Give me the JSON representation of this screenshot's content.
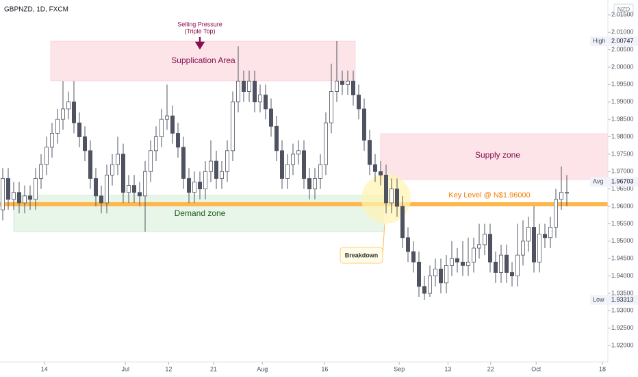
{
  "chart_data": {
    "type": "candlestick",
    "title": "GBPNZD, 1D, FXCM",
    "currency": "NZD",
    "up_color": "#ffffff",
    "down_color": "#4f5361",
    "edge_color": "#4f5361",
    "grid": false,
    "xlim": [
      -0.5,
      110.5
    ],
    "xticks": [
      {
        "value": 7.6,
        "label": "14"
      },
      {
        "value": 22.4,
        "label": "Jul"
      },
      {
        "value": 30.3,
        "label": "12"
      },
      {
        "value": 38.5,
        "label": "21"
      },
      {
        "value": 47.4,
        "label": "Aug"
      },
      {
        "value": 58.8,
        "label": "16"
      },
      {
        "value": 72.4,
        "label": "Sep"
      },
      {
        "value": 81.3,
        "label": "13"
      },
      {
        "value": 89.1,
        "label": "22"
      },
      {
        "value": 97.4,
        "label": "Oct"
      },
      {
        "value": 109.5,
        "label": "18"
      }
    ],
    "ylim": [
      1.9153,
      2.0193
    ],
    "yticks": [
      {
        "value": 1.92,
        "label": "1.92000"
      },
      {
        "value": 1.925,
        "label": "1.92500"
      },
      {
        "value": 1.93,
        "label": "1.93000"
      },
      {
        "value": 1.935,
        "label": "1.93500"
      },
      {
        "value": 1.94,
        "label": "1.94000"
      },
      {
        "value": 1.945,
        "label": "1.94500"
      },
      {
        "value": 1.95,
        "label": "1.95000"
      },
      {
        "value": 1.955,
        "label": "1.95500"
      },
      {
        "value": 1.96,
        "label": "1.96000"
      },
      {
        "value": 1.965,
        "label": "1.96500"
      },
      {
        "value": 1.97,
        "label": "1.97000"
      },
      {
        "value": 1.975,
        "label": "1.97500"
      },
      {
        "value": 1.98,
        "label": "1.98000"
      },
      {
        "value": 1.985,
        "label": "1.98500"
      },
      {
        "value": 1.99,
        "label": "1.99000"
      },
      {
        "value": 1.995,
        "label": "1.99500"
      },
      {
        "value": 2.0,
        "label": "2.00000"
      },
      {
        "value": 2.005,
        "label": "2.00500"
      },
      {
        "value": 2.01,
        "label": "2.01000"
      },
      {
        "value": 2.015,
        "label": "2.01500"
      }
    ],
    "markers": [
      {
        "label": "High",
        "value": 2.00747
      },
      {
        "label": "Avg",
        "value": 1.96703
      },
      {
        "label": "Low",
        "value": 1.93313
      }
    ],
    "annotations": [
      "Selling Pressure",
      "(Triple Top)",
      "Supplication Area",
      "Supply zone",
      "Demand zone",
      "Key Level @ N$1.96000",
      "Breakdown"
    ],
    "open": [
      1.959,
      1.968,
      1.962,
      1.964,
      1.961,
      1.963,
      1.962,
      1.968,
      1.972,
      1.977,
      1.981,
      1.985,
      1.988,
      1.99,
      1.984,
      1.98,
      1.976,
      1.968,
      1.963,
      1.961,
      1.969,
      1.972,
      1.975,
      1.964,
      1.966,
      1.964,
      1.963,
      1.97,
      1.976,
      1.98,
      1.985,
      1.986,
      1.981,
      1.977,
      1.968,
      1.964,
      1.967,
      1.965,
      1.97,
      1.973,
      1.968,
      1.97,
      1.976,
      1.99,
      1.996,
      1.993,
      1.996,
      1.99,
      1.992,
      1.988,
      1.983,
      1.976,
      1.968,
      1.972,
      1.975,
      1.976,
      1.968,
      1.965,
      1.968,
      1.972,
      1.984,
      1.993,
      1.996,
      1.995,
      1.996,
      1.992,
      1.988,
      1.979,
      1.972,
      1.97,
      1.969,
      1.961,
      1.965,
      1.96,
      1.951,
      1.947,
      1.944,
      1.937,
      1.935,
      1.94,
      1.942,
      1.938,
      1.943,
      1.945,
      1.944,
      1.943,
      1.944,
      1.948,
      1.949,
      1.952,
      1.944,
      1.941,
      1.946,
      1.941,
      1.94,
      1.946,
      1.95,
      1.954,
      1.944,
      1.952,
      1.951,
      1.954,
      1.962,
      1.964
    ],
    "high": [
      1.971,
      1.971,
      1.967,
      1.967,
      1.966,
      1.966,
      1.971,
      1.975,
      1.98,
      1.984,
      1.988,
      1.996,
      1.993,
      1.996,
      1.987,
      1.983,
      1.979,
      1.971,
      1.966,
      1.972,
      1.975,
      1.98,
      1.978,
      1.969,
      1.969,
      1.967,
      1.973,
      1.979,
      1.983,
      1.988,
      1.995,
      1.989,
      1.984,
      1.98,
      1.971,
      1.97,
      1.97,
      1.973,
      1.979,
      1.976,
      1.973,
      1.979,
      1.993,
      2.006,
      1.999,
      1.999,
      1.999,
      1.995,
      1.995,
      1.991,
      1.986,
      1.979,
      1.975,
      1.978,
      1.979,
      1.979,
      1.971,
      1.971,
      1.975,
      1.987,
      2.001,
      2.0075,
      1.999,
      1.999,
      1.999,
      1.995,
      1.991,
      1.982,
      1.975,
      1.973,
      1.972,
      1.968,
      1.968,
      1.963,
      1.954,
      1.95,
      1.947,
      1.94,
      1.943,
      1.945,
      1.945,
      1.946,
      1.95,
      1.948,
      1.95,
      1.951,
      1.951,
      1.955,
      1.955,
      1.955,
      1.947,
      1.949,
      1.949,
      1.944,
      1.955,
      1.956,
      1.957,
      1.96,
      1.955,
      1.955,
      1.957,
      1.965,
      1.9715,
      1.969
    ],
    "low": [
      1.956,
      1.959,
      1.959,
      1.958,
      1.958,
      1.959,
      1.959,
      1.965,
      1.969,
      1.974,
      1.978,
      1.982,
      1.985,
      1.981,
      1.977,
      1.973,
      1.965,
      1.96,
      1.958,
      1.958,
      1.966,
      1.969,
      1.961,
      1.961,
      1.961,
      1.96,
      1.9527,
      1.967,
      1.973,
      1.977,
      1.982,
      1.978,
      1.974,
      1.965,
      1.961,
      1.961,
      1.962,
      1.962,
      1.967,
      1.965,
      1.965,
      1.967,
      1.973,
      1.987,
      1.99,
      1.99,
      1.987,
      1.987,
      1.985,
      1.98,
      1.973,
      1.965,
      1.965,
      1.969,
      1.972,
      1.965,
      1.962,
      1.962,
      1.965,
      1.969,
      1.981,
      1.99,
      1.992,
      1.992,
      1.989,
      1.985,
      1.976,
      1.969,
      1.967,
      1.966,
      1.958,
      1.958,
      1.957,
      1.948,
      1.944,
      1.941,
      1.934,
      1.9331,
      1.934,
      1.937,
      1.935,
      1.935,
      1.94,
      1.941,
      1.94,
      1.94,
      1.941,
      1.945,
      1.946,
      1.941,
      1.938,
      1.938,
      1.938,
      1.937,
      1.937,
      1.943,
      1.947,
      1.941,
      1.941,
      1.948,
      1.948,
      1.951,
      1.959,
      1.96
    ],
    "close": [
      1.968,
      1.962,
      1.964,
      1.961,
      1.963,
      1.962,
      1.968,
      1.972,
      1.977,
      1.981,
      1.985,
      1.988,
      1.99,
      1.984,
      1.98,
      1.976,
      1.968,
      1.963,
      1.961,
      1.969,
      1.972,
      1.975,
      1.964,
      1.966,
      1.964,
      1.963,
      1.97,
      1.976,
      1.98,
      1.985,
      1.986,
      1.981,
      1.977,
      1.968,
      1.964,
      1.967,
      1.965,
      1.97,
      1.973,
      1.968,
      1.97,
      1.976,
      1.99,
      1.996,
      1.993,
      1.996,
      1.99,
      1.992,
      1.988,
      1.983,
      1.976,
      1.968,
      1.972,
      1.975,
      1.976,
      1.968,
      1.965,
      1.968,
      1.972,
      1.984,
      1.993,
      1.996,
      1.995,
      1.996,
      1.992,
      1.988,
      1.979,
      1.972,
      1.97,
      1.969,
      1.961,
      1.965,
      1.96,
      1.951,
      1.947,
      1.944,
      1.937,
      1.935,
      1.94,
      1.942,
      1.938,
      1.943,
      1.945,
      1.944,
      1.943,
      1.944,
      1.948,
      1.949,
      1.952,
      1.944,
      1.941,
      1.946,
      1.941,
      1.94,
      1.946,
      1.95,
      1.954,
      1.944,
      1.952,
      1.951,
      1.954,
      1.962,
      1.964,
      1.964
    ]
  }
}
